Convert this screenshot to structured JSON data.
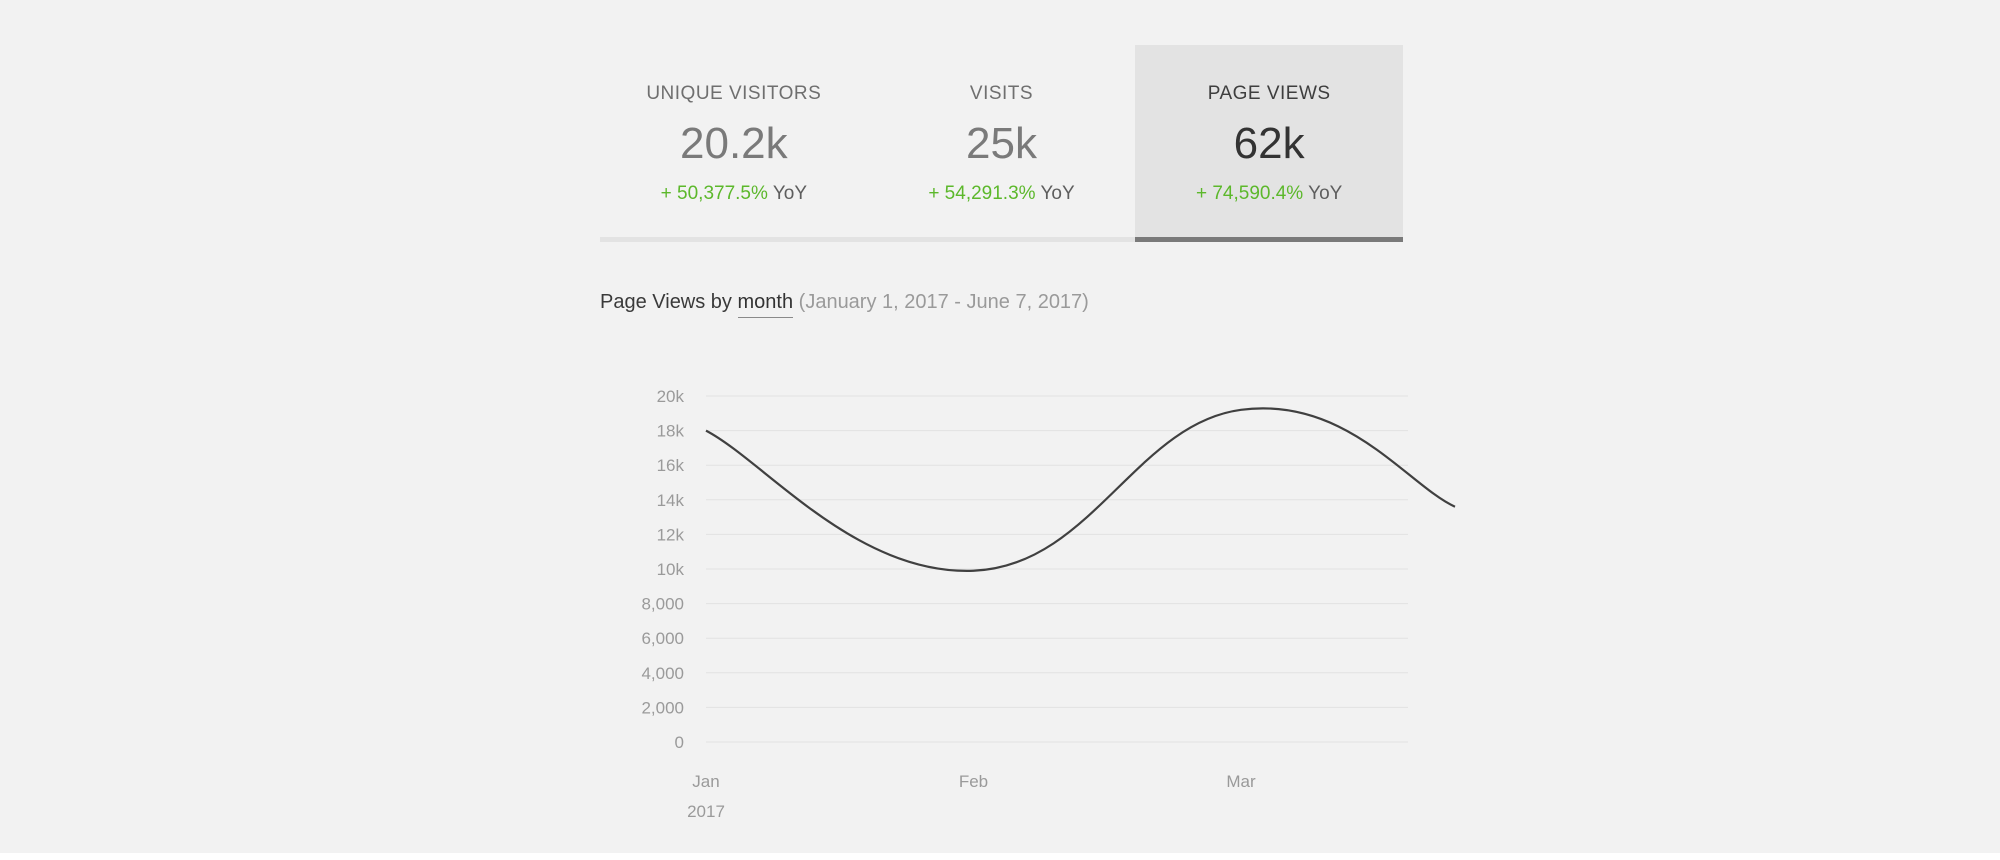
{
  "tabs": [
    {
      "label": "UNIQUE VISITORS",
      "value": "20.2k",
      "change": "+ 50,377.5%",
      "change_unit": "YoY",
      "selected": false
    },
    {
      "label": "VISITS",
      "value": "25k",
      "change": "+ 54,291.3%",
      "change_unit": "YoY",
      "selected": false
    },
    {
      "label": "PAGE VIEWS",
      "value": "62k",
      "change": "+ 74,590.4%",
      "change_unit": "YoY",
      "selected": true
    }
  ],
  "heading": {
    "prefix": "Page Views by",
    "period": "month",
    "range": "(January 1, 2017 - June 7, 2017)"
  },
  "colors": {
    "positive": "#5cb82b",
    "line": "#404040",
    "grid": "#e2e2e2"
  },
  "chart_data": {
    "type": "line",
    "x_tick_labels": [
      "Jan",
      "Feb",
      "Mar"
    ],
    "x_year_label": "2017",
    "y_ticks": [
      0,
      2000,
      4000,
      6000,
      8000,
      10000,
      12000,
      14000,
      16000,
      18000,
      20000
    ],
    "y_tick_labels": [
      "0",
      "2,000",
      "4,000",
      "6,000",
      "8,000",
      "10k",
      "12k",
      "14k",
      "16k",
      "18k",
      "20k"
    ],
    "ylim": [
      0,
      20000
    ],
    "xlim": [
      0,
      2.8
    ],
    "series": [
      {
        "x": [
          0,
          1,
          2,
          2.8
        ],
        "values": [
          18000,
          9900,
          19200,
          13600
        ]
      }
    ],
    "grid": true,
    "legend": "none"
  }
}
